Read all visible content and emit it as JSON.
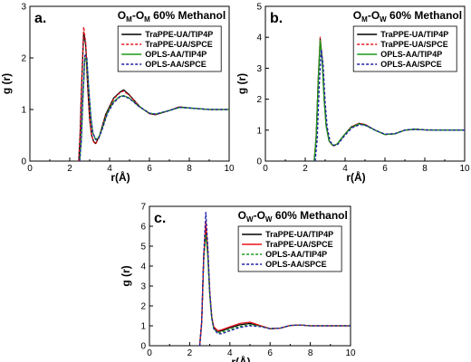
{
  "colors": {
    "TraPPE-UA/TIP4P": "#000000",
    "TraPPE-UA/SPCE": "#e8141c",
    "OPLS-AA/TIP4P": "#1a9a1a",
    "OPLS-AA/SPCE": "#1c1ca8"
  },
  "chart_data": [
    {
      "type": "line",
      "panel_label": "a.",
      "title": {
        "a": "O",
        "a_sub": "M",
        "sep": "-",
        "b": "O",
        "b_sub": "M",
        "rest": " 60% Methanol"
      },
      "xlabel": "r(Å)",
      "ylabel": "g (r)",
      "xlim": [
        0,
        10
      ],
      "ylim": [
        0,
        3
      ],
      "xticks": [
        0,
        2,
        4,
        6,
        8,
        10
      ],
      "yticks": [
        0,
        1,
        2,
        3
      ],
      "legend_position": "top-right",
      "series": [
        {
          "name": "TraPPE-UA/TIP4P",
          "style": "solid",
          "x": [
            2.45,
            2.52,
            2.6,
            2.7,
            2.8,
            2.9,
            3.0,
            3.1,
            3.2,
            3.3,
            3.5,
            3.8,
            4.2,
            4.5,
            4.7,
            5.0,
            5.5,
            6.0,
            6.3,
            7.0,
            7.5,
            8.0,
            9.0,
            10.0
          ],
          "y": [
            0,
            0.5,
            1.5,
            2.5,
            2.25,
            1.45,
            0.8,
            0.5,
            0.38,
            0.34,
            0.5,
            0.9,
            1.22,
            1.33,
            1.38,
            1.28,
            1.06,
            0.92,
            0.9,
            0.98,
            1.05,
            1.03,
            1.0,
            1.0
          ]
        },
        {
          "name": "TraPPE-UA/SPCE",
          "style": "dashed",
          "x": [
            2.45,
            2.52,
            2.6,
            2.7,
            2.8,
            2.9,
            3.0,
            3.1,
            3.2,
            3.3,
            3.5,
            3.8,
            4.2,
            4.5,
            4.7,
            5.0,
            5.5,
            6.0,
            6.3,
            7.0,
            7.5,
            8.0,
            9.0,
            10.0
          ],
          "y": [
            0,
            0.5,
            1.55,
            2.6,
            2.3,
            1.5,
            0.82,
            0.5,
            0.37,
            0.33,
            0.48,
            0.88,
            1.2,
            1.32,
            1.36,
            1.27,
            1.06,
            0.92,
            0.9,
            0.98,
            1.05,
            1.03,
            1.0,
            1.0
          ]
        },
        {
          "name": "OPLS-AA/TIP4P",
          "style": "solid",
          "x": [
            2.5,
            2.58,
            2.66,
            2.76,
            2.86,
            2.96,
            3.06,
            3.16,
            3.3,
            3.45,
            3.6,
            3.9,
            4.2,
            4.5,
            4.7,
            5.0,
            5.5,
            6.0,
            6.3,
            7.0,
            7.5,
            8.0,
            9.0,
            10.0
          ],
          "y": [
            0,
            0.4,
            1.2,
            2.0,
            1.95,
            1.35,
            0.85,
            0.55,
            0.42,
            0.45,
            0.6,
            0.95,
            1.15,
            1.25,
            1.27,
            1.22,
            1.05,
            0.93,
            0.91,
            0.98,
            1.04,
            1.03,
            1.0,
            1.0
          ]
        },
        {
          "name": "OPLS-AA/SPCE",
          "style": "dashed",
          "x": [
            2.5,
            2.58,
            2.66,
            2.76,
            2.86,
            2.96,
            3.06,
            3.16,
            3.3,
            3.45,
            3.6,
            3.9,
            4.2,
            4.5,
            4.7,
            5.0,
            5.5,
            6.0,
            6.3,
            7.0,
            7.5,
            8.0,
            9.0,
            10.0
          ],
          "y": [
            0,
            0.42,
            1.25,
            2.05,
            2.0,
            1.38,
            0.86,
            0.55,
            0.42,
            0.44,
            0.58,
            0.93,
            1.13,
            1.24,
            1.26,
            1.21,
            1.05,
            0.93,
            0.91,
            0.98,
            1.04,
            1.03,
            1.0,
            1.0
          ]
        }
      ]
    },
    {
      "type": "line",
      "panel_label": "b.",
      "title": {
        "a": "O",
        "a_sub": "M",
        "sep": "-",
        "b": "O",
        "b_sub": "W",
        "rest": " 60% Methanol"
      },
      "xlabel": "r(Å)",
      "ylabel": "g (r)",
      "xlim": [
        0,
        10
      ],
      "ylim": [
        0,
        5
      ],
      "xticks": [
        0,
        2,
        4,
        6,
        8,
        10
      ],
      "yticks": [
        0,
        1,
        2,
        3,
        4,
        5
      ],
      "legend_position": "top-right",
      "series": [
        {
          "name": "TraPPE-UA/TIP4P",
          "style": "solid",
          "x": [
            2.45,
            2.55,
            2.65,
            2.75,
            2.85,
            2.95,
            3.05,
            3.2,
            3.4,
            3.6,
            3.9,
            4.3,
            4.7,
            5.0,
            5.5,
            6.0,
            6.5,
            7.0,
            7.5,
            8.0,
            9.0,
            10.0
          ],
          "y": [
            0,
            0.8,
            2.6,
            3.95,
            3.3,
            2.0,
            1.15,
            0.65,
            0.5,
            0.55,
            0.8,
            1.1,
            1.22,
            1.18,
            1.0,
            0.86,
            0.88,
            1.0,
            1.03,
            1.01,
            1.0,
            1.0
          ]
        },
        {
          "name": "TraPPE-UA/SPCE",
          "style": "dashed",
          "x": [
            2.45,
            2.55,
            2.65,
            2.75,
            2.85,
            2.95,
            3.05,
            3.2,
            3.4,
            3.6,
            3.9,
            4.3,
            4.7,
            5.0,
            5.5,
            6.0,
            6.5,
            7.0,
            7.5,
            8.0,
            9.0,
            10.0
          ],
          "y": [
            0,
            0.8,
            2.6,
            4.0,
            3.35,
            2.0,
            1.15,
            0.64,
            0.48,
            0.54,
            0.8,
            1.1,
            1.22,
            1.18,
            1.0,
            0.86,
            0.88,
            1.0,
            1.03,
            1.01,
            1.0,
            1.0
          ]
        },
        {
          "name": "OPLS-AA/TIP4P",
          "style": "solid",
          "x": [
            2.45,
            2.55,
            2.65,
            2.75,
            2.85,
            2.95,
            3.05,
            3.2,
            3.4,
            3.6,
            3.9,
            4.3,
            4.7,
            5.0,
            5.5,
            6.0,
            6.5,
            7.0,
            7.5,
            8.0,
            9.0,
            10.0
          ],
          "y": [
            0,
            0.75,
            2.55,
            3.9,
            3.25,
            1.95,
            1.12,
            0.64,
            0.5,
            0.55,
            0.8,
            1.08,
            1.2,
            1.16,
            1.0,
            0.86,
            0.88,
            1.0,
            1.03,
            1.01,
            1.0,
            1.0
          ]
        },
        {
          "name": "OPLS-AA/SPCE",
          "style": "dashed",
          "x": [
            2.5,
            2.6,
            2.7,
            2.8,
            2.9,
            3.0,
            3.1,
            3.25,
            3.45,
            3.65,
            3.95,
            4.35,
            4.75,
            5.05,
            5.5,
            6.0,
            6.5,
            7.0,
            7.5,
            8.0,
            9.0,
            10.0
          ],
          "y": [
            0,
            0.7,
            2.4,
            3.6,
            3.1,
            1.9,
            1.1,
            0.63,
            0.5,
            0.55,
            0.8,
            1.08,
            1.18,
            1.15,
            1.0,
            0.87,
            0.89,
            1.0,
            1.03,
            1.01,
            1.0,
            1.0
          ]
        }
      ]
    },
    {
      "type": "line",
      "panel_label": "c.",
      "title": {
        "a": "O",
        "a_sub": "W",
        "sep": "-",
        "b": "O",
        "b_sub": "W",
        "rest": " 60% Methanol"
      },
      "xlabel": "r(Å)",
      "ylabel": "g (r)",
      "xlim": [
        0,
        10
      ],
      "ylim": [
        0,
        7
      ],
      "xticks": [
        0,
        2,
        4,
        6,
        8,
        10
      ],
      "yticks": [
        0,
        1,
        2,
        3,
        4,
        5,
        6,
        7
      ],
      "legend_position": "top-right",
      "series": [
        {
          "name": "TraPPE-UA/TIP4P",
          "style": "solid",
          "x": [
            2.5,
            2.6,
            2.7,
            2.8,
            2.9,
            3.0,
            3.1,
            3.2,
            3.4,
            3.6,
            4.0,
            4.5,
            5.0,
            5.5,
            6.0,
            6.5,
            7.0,
            7.5,
            8.0,
            9.0,
            10.0
          ],
          "y": [
            0,
            1.2,
            4.5,
            5.8,
            4.6,
            2.6,
            1.4,
            0.9,
            0.72,
            0.75,
            0.9,
            1.05,
            1.12,
            1.0,
            0.85,
            0.88,
            1.02,
            1.04,
            1.0,
            1.0,
            1.0
          ]
        },
        {
          "name": "TraPPE-UA/SPCE",
          "style": "solid",
          "x": [
            2.5,
            2.6,
            2.7,
            2.8,
            2.9,
            3.0,
            3.1,
            3.2,
            3.4,
            3.6,
            4.0,
            4.5,
            5.0,
            5.5,
            6.0,
            6.5,
            7.0,
            7.5,
            8.0,
            9.0,
            10.0
          ],
          "y": [
            0,
            1.2,
            4.4,
            6.2,
            4.8,
            2.7,
            1.45,
            0.95,
            0.75,
            0.8,
            0.95,
            1.12,
            1.18,
            1.02,
            0.86,
            0.88,
            1.02,
            1.04,
            1.0,
            1.0,
            1.0
          ]
        },
        {
          "name": "OPLS-AA/TIP4P",
          "style": "dashed",
          "x": [
            2.5,
            2.6,
            2.7,
            2.8,
            2.9,
            3.0,
            3.1,
            3.2,
            3.4,
            3.6,
            4.0,
            4.5,
            5.0,
            5.5,
            6.0,
            6.5,
            7.0,
            7.5,
            8.0,
            9.0,
            10.0
          ],
          "y": [
            0,
            1.1,
            4.2,
            5.6,
            4.5,
            2.5,
            1.35,
            0.85,
            0.65,
            0.68,
            0.82,
            0.97,
            1.05,
            0.98,
            0.86,
            0.88,
            1.02,
            1.04,
            1.0,
            1.0,
            1.0
          ]
        },
        {
          "name": "OPLS-AA/SPCE",
          "style": "dashed",
          "x": [
            2.5,
            2.6,
            2.7,
            2.8,
            2.9,
            3.0,
            3.1,
            3.2,
            3.4,
            3.6,
            4.0,
            4.5,
            5.0,
            5.5,
            6.0,
            6.5,
            7.0,
            7.5,
            8.0,
            9.0,
            10.0
          ],
          "y": [
            0,
            1.2,
            4.6,
            6.7,
            5.0,
            2.7,
            1.4,
            0.85,
            0.6,
            0.6,
            0.75,
            0.92,
            1.0,
            0.96,
            0.86,
            0.88,
            1.02,
            1.04,
            1.0,
            1.0,
            1.0
          ]
        }
      ]
    }
  ]
}
